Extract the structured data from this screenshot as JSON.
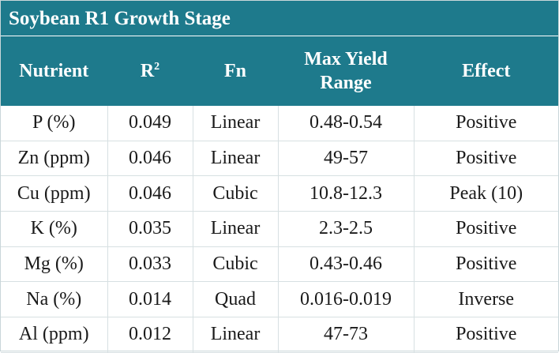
{
  "title": "Soybean R1 Growth Stage",
  "columns": {
    "nutrient": "Nutrient",
    "r2_base": "R",
    "r2_sup": "2",
    "fn": "Fn",
    "range_line1": "Max Yield",
    "range_line2": "Range",
    "effect": "Effect"
  },
  "rows": [
    {
      "nutrient": "P (%)",
      "r2": "0.049",
      "fn": "Linear",
      "range": "0.48-0.54",
      "effect": "Positive"
    },
    {
      "nutrient": "Zn (ppm)",
      "r2": "0.046",
      "fn": "Linear",
      "range": "49-57",
      "effect": "Positive"
    },
    {
      "nutrient": "Cu (ppm)",
      "r2": "0.046",
      "fn": "Cubic",
      "range": "10.8-12.3",
      "effect": "Peak (10)"
    },
    {
      "nutrient": "K (%)",
      "r2": "0.035",
      "fn": "Linear",
      "range": "2.3-2.5",
      "effect": "Positive"
    },
    {
      "nutrient": "Mg (%)",
      "r2": "0.033",
      "fn": "Cubic",
      "range": "0.43-0.46",
      "effect": "Positive"
    },
    {
      "nutrient": "Na (%)",
      "r2": "0.014",
      "fn": "Quad",
      "range": "0.016-0.019",
      "effect": "Inverse"
    },
    {
      "nutrient": "Al (ppm)",
      "r2": "0.012",
      "fn": "Linear",
      "range": "47-73",
      "effect": "Positive"
    }
  ],
  "colors": {
    "header_bg": "#1e7a8c",
    "header_text": "#ffffff",
    "cell_text": "#1a1a1a",
    "grid_line": "#d7e0e2"
  }
}
